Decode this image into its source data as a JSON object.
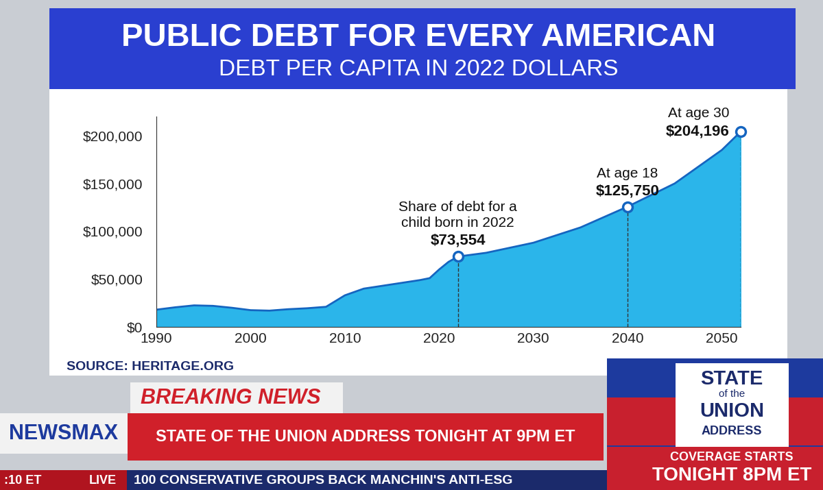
{
  "chart_data": {
    "type": "area",
    "title": "PUBLIC DEBT FOR EVERY AMERICAN",
    "subtitle": "DEBT PER CAPITA IN 2022 DOLLARS",
    "source": "SOURCE: HERITAGE.ORG",
    "x": [
      1990,
      1992,
      1994,
      1996,
      1998,
      2000,
      2002,
      2004,
      2006,
      2008,
      2009,
      2010,
      2012,
      2014,
      2016,
      2018,
      2019,
      2020,
      2021,
      2022,
      2025,
      2030,
      2035,
      2040,
      2045,
      2050,
      2052
    ],
    "values": [
      18000,
      20500,
      22500,
      22000,
      20000,
      17500,
      17000,
      18500,
      19500,
      21000,
      27000,
      33000,
      40000,
      43000,
      46000,
      49000,
      51000,
      60000,
      68000,
      73554,
      77500,
      88000,
      104000,
      125750,
      150000,
      185000,
      204196
    ],
    "color": "#2bb5ea",
    "xlim": [
      1990,
      2052
    ],
    "xticks": [
      1990,
      2000,
      2010,
      2020,
      2030,
      2040,
      2050
    ],
    "ylim": [
      0,
      220000
    ],
    "yticks": [
      {
        "value": 0,
        "label": "$0"
      },
      {
        "value": 50000,
        "label": "$50,000"
      },
      {
        "value": 100000,
        "label": "$100,000"
      },
      {
        "value": 150000,
        "label": "$150,000"
      },
      {
        "value": 200000,
        "label": "$200,000"
      }
    ],
    "grid": false,
    "annotations": [
      {
        "x": 2022,
        "y": 73554,
        "text": "Share of debt for a\nchild born in 2022",
        "value_label": "$73,554"
      },
      {
        "x": 2040,
        "y": 125750,
        "text": "At age 18",
        "value_label": "$125,750"
      },
      {
        "x": 2052,
        "y": 204196,
        "text": "At age 30",
        "value_label": "$204,196"
      }
    ]
  },
  "broadcast": {
    "channel": "NEWSMAX",
    "time": ":10 ET",
    "live": "LIVE",
    "kicker": "BREAKING NEWS",
    "headline": "STATE OF THE UNION ADDRESS TONIGHT AT 9PM ET",
    "ticker": "100 CONSERVATIVE GROUPS BACK MANCHIN'S ANTI-ESG",
    "promo_logo": [
      "STATE",
      "of the",
      "UNION",
      "ADDRESS"
    ],
    "promo_lines": [
      "COVERAGE STARTS",
      "TONIGHT 8PM ET"
    ]
  }
}
